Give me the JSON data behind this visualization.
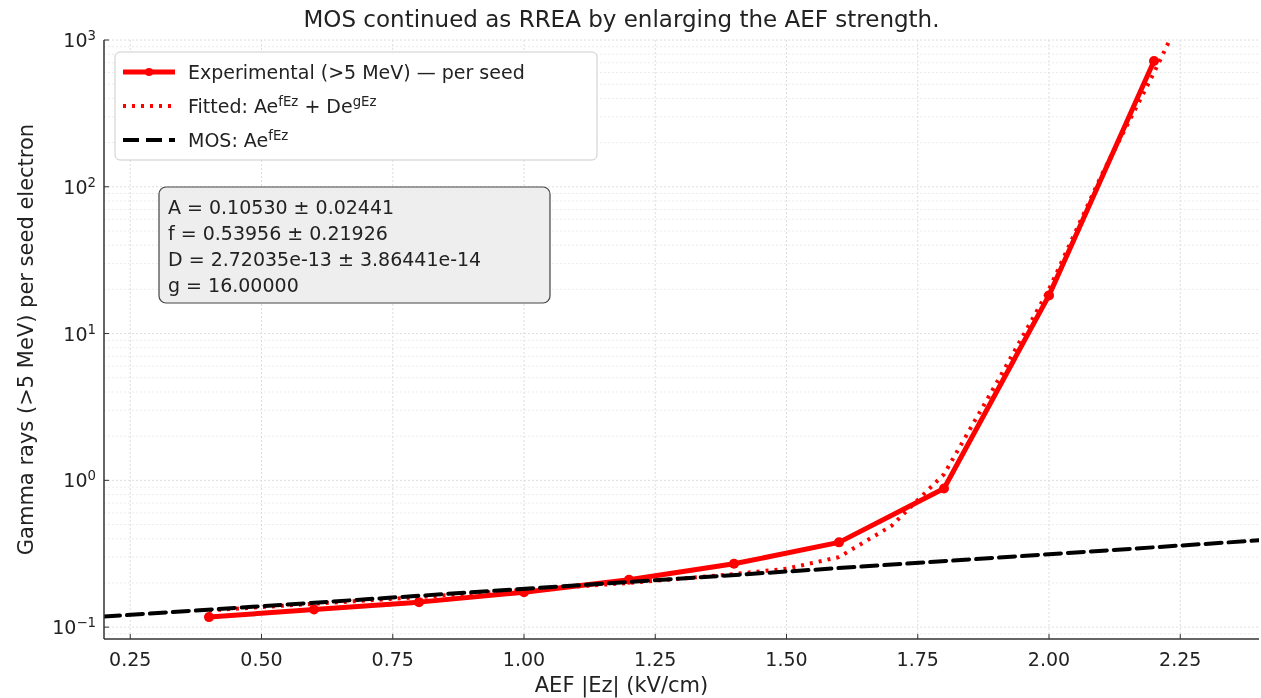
{
  "chart_data": {
    "type": "line",
    "title": "MOS continued as RREA by enlarging the AEF strength.",
    "xlabel": "AEF |Ez| (kV/cm)",
    "ylabel": "Gamma rays (>5 MeV) per seed electron",
    "log": "y",
    "grid": true,
    "legend": "top left",
    "xlim": [
      0.2,
      2.4
    ],
    "xticks": [
      {
        "value": 0.25,
        "label": "0.25"
      },
      {
        "value": 0.5,
        "label": "0.50"
      },
      {
        "value": 0.75,
        "label": "0.75"
      },
      {
        "value": 1.0,
        "label": "1.00"
      },
      {
        "value": 1.25,
        "label": "1.25"
      },
      {
        "value": 1.5,
        "label": "1.50"
      },
      {
        "value": 1.75,
        "label": "1.75"
      },
      {
        "value": 2.0,
        "label": "2.00"
      },
      {
        "value": 2.25,
        "label": "2.25"
      }
    ],
    "ylim": [
      0.083,
      1000
    ],
    "yticks": [
      {
        "value": 0.1,
        "label": "10$^{−1}$"
      },
      {
        "value": 1,
        "label": "10$^{0}$"
      },
      {
        "value": 10,
        "label": "10$^{1}$"
      },
      {
        "value": 100,
        "label": "10$^{2}$"
      },
      {
        "value": 1000,
        "label": "10$^{3}$"
      }
    ],
    "series": [
      {
        "name": "Experimental (>5 MeV) — per seed",
        "color": "#ff0000",
        "marker": "circle",
        "line_style": "solid",
        "x": [
          0.4,
          0.6,
          0.8,
          1.0,
          1.2,
          1.4,
          1.6,
          1.8,
          2.0,
          2.2
        ],
        "values": [
          0.117,
          0.132,
          0.148,
          0.173,
          0.21,
          0.27,
          0.378,
          0.88,
          18.2,
          720
        ]
      },
      {
        "name": "Fitted: Ae$^{fEz}$ + De$^{gEz}$",
        "color": "#ff0000",
        "marker": "none",
        "line_style": "dotted",
        "x": [
          0.4,
          0.8,
          1.2,
          1.4,
          1.5,
          1.6,
          1.7,
          1.8,
          1.9,
          2.0,
          2.1,
          2.2,
          2.23
        ],
        "values": [
          0.13,
          0.16,
          0.2,
          0.23,
          0.25,
          0.3,
          0.49,
          1.1,
          4.6,
          20,
          120,
          600,
          1000
        ]
      },
      {
        "name": "MOS: Ae$^{fEz}$",
        "color": "#000000",
        "marker": "none",
        "line_style": "dashed",
        "x": [
          0.2,
          2.4
        ],
        "values": [
          0.118,
          0.39
        ]
      }
    ],
    "annotations": [
      "A = 0.10530 ± 0.02441",
      "f = 0.53956 ± 0.21926",
      "D = 2.72035e-13 ± 3.86441e-14",
      "g = 16.00000"
    ]
  }
}
